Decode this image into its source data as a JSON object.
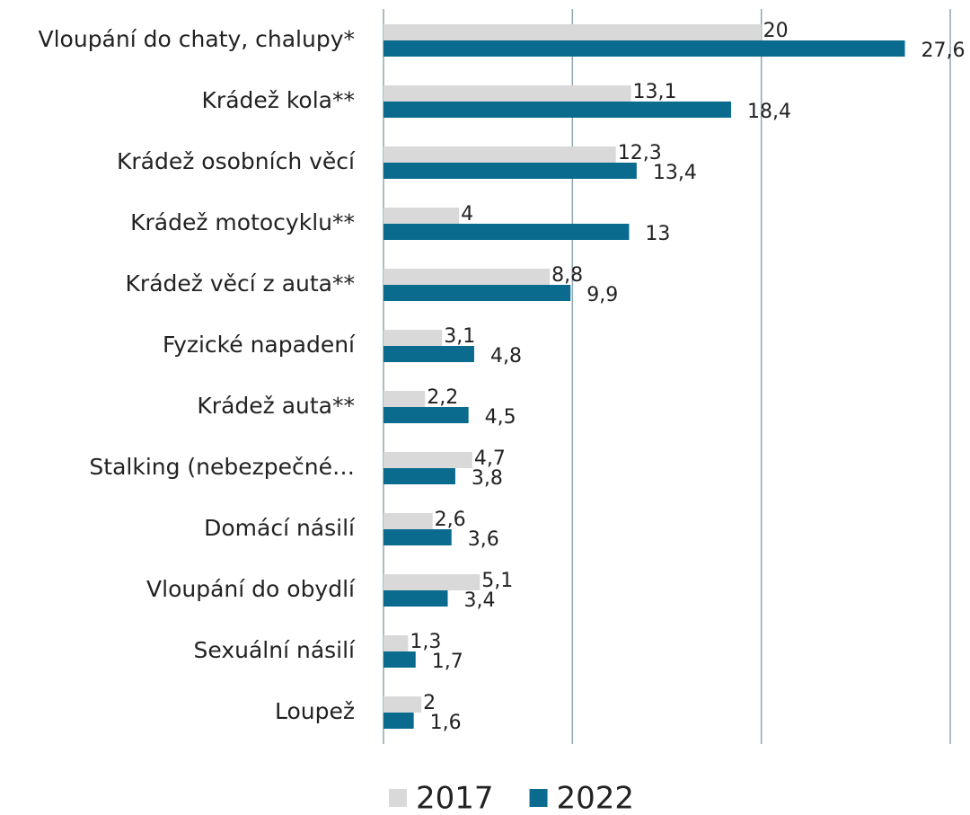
{
  "chart_data": {
    "type": "bar",
    "orientation": "horizontal",
    "categories": [
      "Vloupání do chaty, chalupy*",
      "Krádež kola**",
      "Krádež osobních věcí",
      "Krádež motocyklu**",
      "Krádež věcí z auta**",
      "Fyzické napadení",
      "Krádež auta**",
      "Stalking (nebezpečné…",
      "Domácí násilí",
      "Vloupání do obydlí",
      "Sexuální násilí",
      "Loupež"
    ],
    "series": [
      {
        "name": "2017",
        "color": "#d9d9d9",
        "values": [
          20,
          13.1,
          12.3,
          4,
          8.8,
          3.1,
          2.2,
          4.7,
          2.6,
          5.1,
          1.3,
          2
        ],
        "value_labels": [
          "20",
          "13,1",
          "12,3",
          "4",
          "8,8",
          "3,1",
          "2,2",
          "4,7",
          "2,6",
          "5,1",
          "1,3",
          "2"
        ]
      },
      {
        "name": "2022",
        "color": "#0b6b8e",
        "values": [
          27.6,
          18.4,
          13.4,
          13,
          9.9,
          4.8,
          4.5,
          3.8,
          3.6,
          3.4,
          1.7,
          1.6
        ],
        "value_labels": [
          "27,6",
          "18,4",
          "13,4",
          "13",
          "9,9",
          "4,8",
          "4,5",
          "3,8",
          "3,6",
          "3,4",
          "1,7",
          "1,6"
        ]
      }
    ],
    "xlim": [
      0,
      30
    ],
    "xticks": [
      0,
      10,
      20,
      30
    ],
    "grid": true,
    "legend": "bottom"
  }
}
